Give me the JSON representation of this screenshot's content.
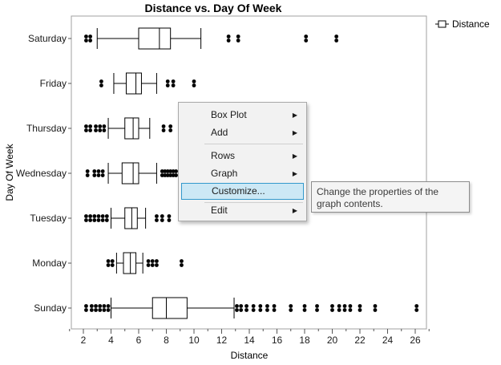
{
  "chart": {
    "title": "Distance vs. Day Of Week",
    "xlabel": "Distance",
    "ylabel": "Day Of Week",
    "legend_label": "Distance"
  },
  "chart_data": {
    "type": "boxplot",
    "title": "Distance vs. Day Of Week",
    "xlabel": "Distance",
    "ylabel": "Day Of Week",
    "xlim": [
      1,
      27
    ],
    "xticks": [
      2,
      4,
      6,
      8,
      10,
      12,
      14,
      16,
      18,
      20,
      22,
      24,
      26
    ],
    "categories": [
      "Saturday",
      "Friday",
      "Thursday",
      "Wednesday",
      "Tuesday",
      "Monday",
      "Sunday"
    ],
    "legend": {
      "entries": [
        "Distance"
      ],
      "position": "top-right"
    },
    "grid": false,
    "boxes": [
      {
        "category": "Saturday",
        "whisker_low": 3,
        "q1": 6,
        "median": 7.5,
        "q3": 8.3,
        "whisker_high": 10.5,
        "outliers": [
          2.2,
          2.5,
          12.5,
          13.2,
          18.1,
          20.3
        ]
      },
      {
        "category": "Friday",
        "whisker_low": 4.2,
        "q1": 5.1,
        "median": 5.8,
        "q3": 6.2,
        "whisker_high": 7.3,
        "outliers": [
          3.3,
          8.1,
          8.5,
          10
        ]
      },
      {
        "category": "Thursday",
        "whisker_low": 3.8,
        "q1": 5,
        "median": 5.6,
        "q3": 6,
        "whisker_high": 6.8,
        "outliers": [
          2.2,
          2.5,
          2.9,
          3.2,
          3.5,
          7.8,
          8.3
        ]
      },
      {
        "category": "Wednesday",
        "whisker_low": 3.8,
        "q1": 4.8,
        "median": 5.6,
        "q3": 6,
        "whisker_high": 7.3,
        "outliers": [
          2.3,
          2.8,
          3.1,
          3.4,
          7.7,
          7.9,
          8.1,
          8.3,
          8.5,
          8.7
        ]
      },
      {
        "category": "Tuesday",
        "whisker_low": 4,
        "q1": 5,
        "median": 5.5,
        "q3": 5.9,
        "whisker_high": 6.5,
        "outliers": [
          2.2,
          2.5,
          2.8,
          3.1,
          3.4,
          3.7,
          7.3,
          7.7,
          8.2
        ]
      },
      {
        "category": "Monday",
        "whisker_low": 4.4,
        "q1": 4.9,
        "median": 5.4,
        "q3": 5.8,
        "whisker_high": 6.3,
        "outliers": [
          3.8,
          4.1,
          6.7,
          7,
          7.3,
          9.1
        ]
      },
      {
        "category": "Sunday",
        "whisker_low": 4,
        "q1": 7,
        "median": 8,
        "q3": 9.5,
        "whisker_high": 12.9,
        "outliers": [
          2.2,
          2.6,
          2.9,
          3.2,
          3.5,
          3.8,
          13.1,
          13.4,
          13.8,
          14.3,
          14.8,
          15.3,
          15.8,
          17,
          18,
          18.9,
          20,
          20.5,
          20.9,
          21.3,
          22,
          23.1,
          26.1
        ]
      }
    ]
  },
  "context_menu": {
    "items": [
      {
        "label": "Box Plot",
        "submenu": true,
        "highlighted": false
      },
      {
        "label": "Add",
        "submenu": true,
        "highlighted": false
      },
      {
        "label": "Rows",
        "submenu": true,
        "highlighted": false
      },
      {
        "label": "Graph",
        "submenu": true,
        "highlighted": false
      },
      {
        "label": "Customize...",
        "submenu": false,
        "highlighted": true
      },
      {
        "label": "Edit",
        "submenu": true,
        "highlighted": false
      }
    ]
  },
  "tooltip": {
    "text": "Change the properties of the graph contents."
  },
  "colors": {
    "menu_highlight": "#cce8f5",
    "menu_highlight_border": "#3399cc",
    "marker": "#000000",
    "frame": "#a0a0a0"
  }
}
